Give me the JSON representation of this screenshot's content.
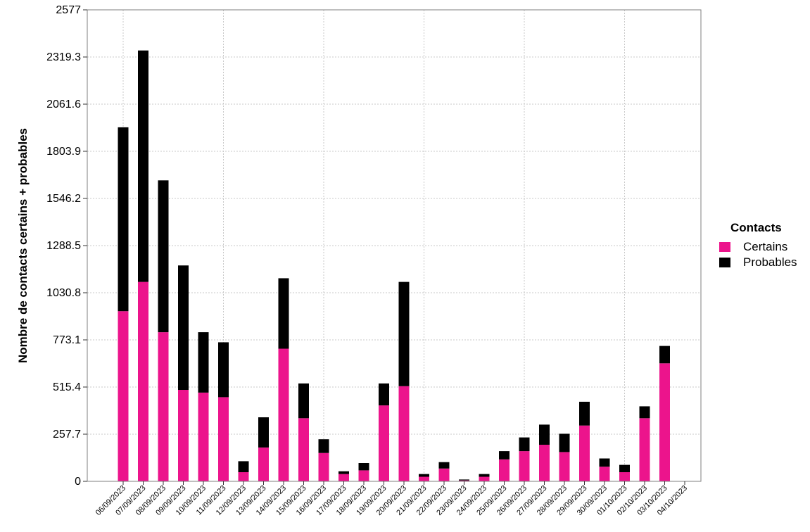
{
  "chart_data": {
    "type": "bar",
    "stacked": true,
    "ylabel": "Nombre de contacts certains + probables",
    "xlabel": "",
    "ylim": [
      0,
      2577
    ],
    "yticks": [
      "0",
      "257.7",
      "515.4",
      "773.1",
      "1030.8",
      "1288.5",
      "1546.2",
      "1803.9",
      "2061.6",
      "2319.3",
      "2577"
    ],
    "grid": true,
    "legend_position": "right",
    "legend_title": "Contacts",
    "colors": {
      "Certains": "#ec148c",
      "Probables": "#000000"
    },
    "categories": [
      "06/09/2023",
      "07/09/2023",
      "08/09/2023",
      "09/09/2023",
      "10/09/2023",
      "11/09/2023",
      "12/09/2023",
      "13/09/2023",
      "14/09/2023",
      "15/09/2023",
      "16/09/2023",
      "17/09/2023",
      "18/09/2023",
      "19/09/2023",
      "20/09/2023",
      "21/09/2023",
      "22/09/2023",
      "23/09/2023",
      "24/09/2023",
      "25/09/2023",
      "26/09/2023",
      "27/09/2023",
      "28/09/2023",
      "29/09/2023",
      "30/09/2023",
      "01/10/2023",
      "02/10/2023",
      "03/10/2023",
      "04/10/2023"
    ],
    "series": [
      {
        "name": "Certains",
        "values": [
          930,
          1090,
          815,
          500,
          485,
          460,
          50,
          185,
          725,
          345,
          155,
          40,
          60,
          415,
          520,
          25,
          70,
          5,
          25,
          120,
          165,
          200,
          160,
          305,
          80,
          50,
          345,
          645,
          0
        ]
      },
      {
        "name": "Probables",
        "values": [
          1005,
          1265,
          830,
          680,
          330,
          300,
          60,
          165,
          385,
          190,
          75,
          15,
          40,
          120,
          570,
          15,
          35,
          5,
          15,
          45,
          75,
          110,
          100,
          130,
          45,
          40,
          65,
          95,
          0
        ]
      }
    ]
  }
}
